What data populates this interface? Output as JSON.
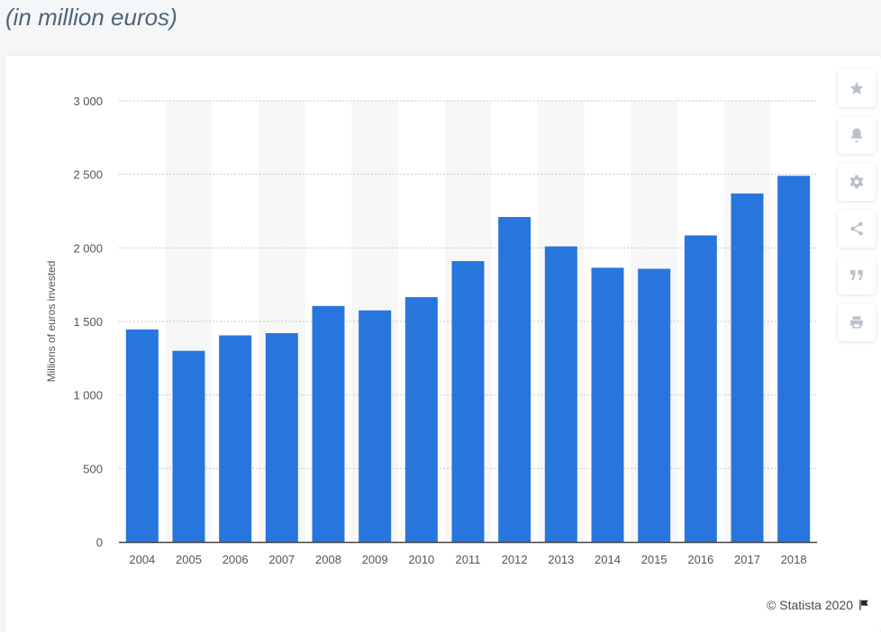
{
  "header": {
    "subtitle": "(in million euros)"
  },
  "toolbar": {
    "buttons": [
      {
        "name": "star-icon"
      },
      {
        "name": "bell-icon"
      },
      {
        "name": "gear-icon"
      },
      {
        "name": "share-icon"
      },
      {
        "name": "quote-icon"
      },
      {
        "name": "print-icon"
      }
    ],
    "icon_color": "#b9c1c9"
  },
  "footer": {
    "credit": "© Statista 2020"
  },
  "chart_data": {
    "type": "bar",
    "categories": [
      "2004",
      "2005",
      "2006",
      "2007",
      "2008",
      "2009",
      "2010",
      "2011",
      "2012",
      "2013",
      "2014",
      "2015",
      "2016",
      "2017",
      "2018"
    ],
    "values": [
      1445,
      1300,
      1405,
      1420,
      1605,
      1575,
      1665,
      1910,
      2210,
      2010,
      1865,
      1858,
      2085,
      2370,
      2490
    ],
    "ylabel": "Millions of euros invested",
    "xlabel": "",
    "ylim": [
      0,
      3000
    ],
    "yticks": [
      0,
      500,
      1000,
      1500,
      2000,
      2500,
      3000
    ],
    "ytick_labels": [
      "0",
      "500",
      "1 000",
      "1 500",
      "2 000",
      "2 500",
      "3 000"
    ],
    "grid": true,
    "bar_color": "#2876dd",
    "band_color": "#f7f7f7"
  }
}
